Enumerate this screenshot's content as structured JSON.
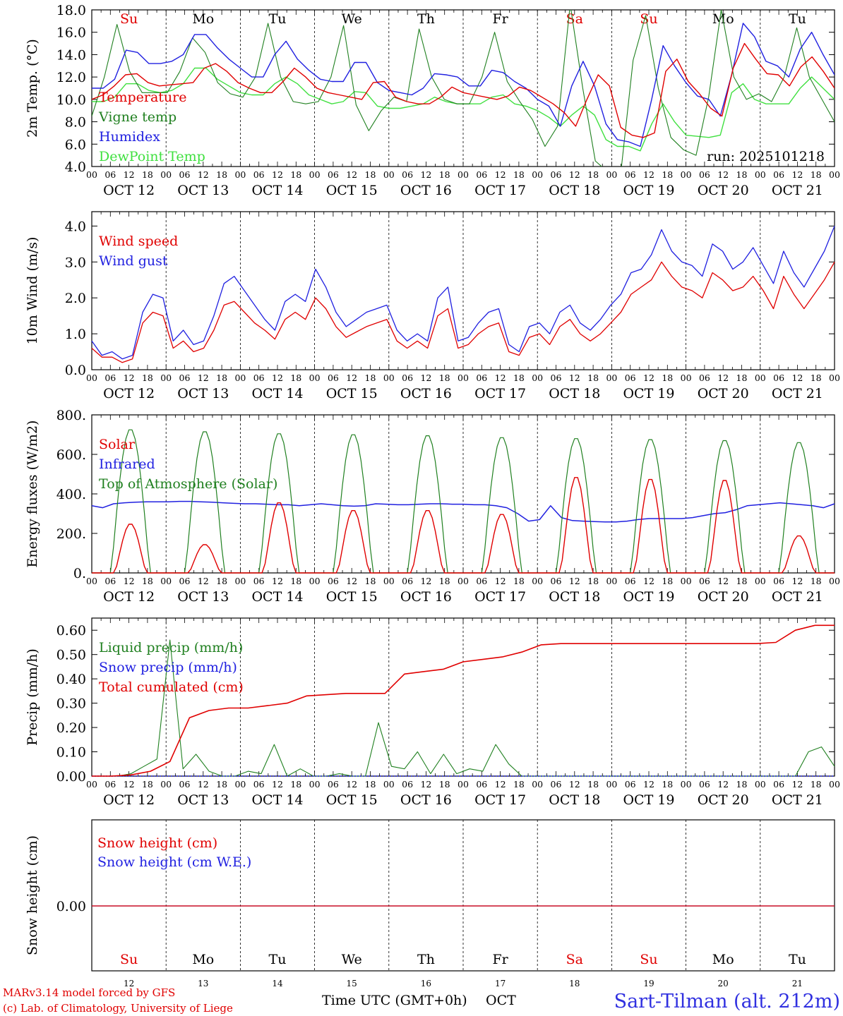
{
  "run_label": "run: 2025101218",
  "days": [
    "OCT 12",
    "OCT 13",
    "OCT 14",
    "OCT 15",
    "OCT 16",
    "OCT 17",
    "OCT 18",
    "OCT 19",
    "OCT 20",
    "OCT 21"
  ],
  "weekdays": [
    "Su",
    "Mo",
    "Tu",
    "We",
    "Th",
    "Fr",
    "Sa",
    "Su",
    "Mo",
    "Tu"
  ],
  "weekday_colors": [
    "#e00000",
    "#000000",
    "#000000",
    "#000000",
    "#000000",
    "#000000",
    "#e00000",
    "#e00000",
    "#000000",
    "#000000"
  ],
  "day_numbers": [
    "12",
    "13",
    "14",
    "15",
    "16",
    "17",
    "18",
    "19",
    "20",
    "21"
  ],
  "hour_ticks": [
    "00",
    "06",
    "12",
    "18"
  ],
  "footer": {
    "model": "MARv3.14 model forced by GFS",
    "lab": "(c) Lab. of Climatology, University of Liege",
    "xlabel": "Time UTC (GMT+0h)",
    "month": "OCT",
    "station": "Sart-Tilman (alt. 212m)"
  },
  "chart_data": [
    {
      "type": "line",
      "ylabel": "2m Temp. (°C)",
      "ylim": [
        4.0,
        18.0
      ],
      "yticks": [
        "4.0",
        "6.0",
        "8.0",
        "10.0",
        "12.0",
        "14.0",
        "16.0",
        "18.0"
      ],
      "x_start": "2025-10-12 00:00",
      "x_step_hours": 3,
      "series": [
        {
          "name": "Temperature",
          "color": "#e00000",
          "values": [
            10,
            10.4,
            11.2,
            12.2,
            12.3,
            11.5,
            11.2,
            11.3,
            11.4,
            11.5,
            12.8,
            13.2,
            12.5,
            11.5,
            11,
            10.6,
            10.6,
            11.6,
            12.8,
            12,
            11,
            10.6,
            10.4,
            10.2,
            10,
            11.5,
            11.6,
            10.2,
            9.8,
            9.6,
            9.6,
            10.2,
            11.1,
            10.6,
            10.4,
            10.2,
            10,
            10.3,
            11.1,
            10.8,
            10.2,
            9.6,
            8.8,
            7.6,
            10,
            12.2,
            11.2,
            7.5,
            6.8,
            6.6,
            7,
            12.5,
            13.6,
            11.6,
            10.5,
            9.2,
            8.5,
            12.8,
            15.0,
            13.6,
            12.3,
            12.2,
            11.2,
            12.9,
            13.8,
            12.5,
            11
          ]
        },
        {
          "name": "Vigne temp",
          "color": "#208020",
          "values": [
            8.5,
            12,
            16.7,
            12.5,
            10.6,
            10.6,
            10.6,
            12.5,
            15.5,
            14.2,
            11.5,
            10.5,
            10.2,
            12,
            16.8,
            12,
            9.8,
            9.6,
            9.8,
            12,
            16.6,
            9.5,
            7.2,
            9,
            10.2,
            9.8,
            16.3,
            12,
            10,
            9.6,
            9.6,
            12,
            16,
            11.6,
            9.8,
            8.2,
            5.8,
            7.6,
            18.5,
            11,
            4.5,
            3.5,
            3.2,
            13.5,
            17.5,
            11,
            6.6,
            5.5,
            5,
            10.2,
            18,
            12,
            10,
            10.5,
            9.8,
            12,
            16.4,
            12,
            10,
            8
          ]
        },
        {
          "name": "Humidex",
          "color": "#2020e0",
          "values": [
            11,
            11,
            11.8,
            14.4,
            14.2,
            13.2,
            13.2,
            13.4,
            14,
            15.8,
            15.8,
            14.6,
            13.6,
            12.8,
            12,
            12,
            14,
            15.2,
            13.6,
            12.6,
            11.8,
            11.6,
            11.6,
            13.3,
            13.3,
            11.5,
            10.8,
            10.6,
            10.4,
            11,
            12.3,
            12.2,
            12,
            11.2,
            11.2,
            12.6,
            12.4,
            11.6,
            11,
            10,
            9.4,
            7.6,
            11.2,
            13.4,
            11.2,
            7.8,
            6.4,
            6.2,
            5.8,
            10,
            14.8,
            13,
            11.5,
            10.3,
            10,
            8.5,
            12.2,
            16.8,
            15.6,
            13.4,
            13,
            12,
            14.5,
            16,
            14,
            12.2
          ]
        },
        {
          "name": "DewPoint Temp",
          "color": "#40e040",
          "values": [
            9.8,
            9.8,
            10.2,
            11.4,
            11.4,
            10.8,
            10.6,
            10.8,
            11.4,
            12.8,
            12.8,
            11.8,
            11.2,
            10.6,
            10.4,
            10.4,
            11.4,
            12,
            11.4,
            10.4,
            10,
            9.6,
            9.8,
            10.7,
            10.6,
            9.4,
            9.2,
            9.2,
            9.4,
            9.6,
            10.2,
            9.8,
            9.6,
            9.6,
            9.6,
            10.2,
            10.4,
            9.6,
            9.4,
            9,
            8.4,
            7.6,
            8.6,
            9.4,
            8.6,
            6.4,
            5.8,
            5.8,
            5.4,
            7.8,
            9.6,
            8,
            6.8,
            6.7,
            6.6,
            6.8,
            10.6,
            11.4,
            10,
            9.6,
            9.6,
            9.6,
            11,
            12,
            11,
            10
          ]
        }
      ]
    },
    {
      "type": "line",
      "ylabel": "10m Wind (m/s)",
      "ylim": [
        0.0,
        4.4
      ],
      "yticks": [
        "0.0",
        "1.0",
        "2.0",
        "3.0",
        "4.0"
      ],
      "x_start": "2025-10-12 00:00",
      "x_step_hours": 3,
      "series": [
        {
          "name": "Wind speed",
          "color": "#e00000",
          "values": [
            0.6,
            0.35,
            0.35,
            0.2,
            0.3,
            1.3,
            1.6,
            1.5,
            0.6,
            0.8,
            0.5,
            0.6,
            1.1,
            1.8,
            1.9,
            1.6,
            1.3,
            1.1,
            0.85,
            1.4,
            1.6,
            1.4,
            2.0,
            1.7,
            1.2,
            0.9,
            1.05,
            1.2,
            1.3,
            1.4,
            0.8,
            0.6,
            0.8,
            0.6,
            1.5,
            1.7,
            0.6,
            0.7,
            1.0,
            1.2,
            1.3,
            0.5,
            0.4,
            0.9,
            1.0,
            0.7,
            1.2,
            1.4,
            1.0,
            0.8,
            1.0,
            1.3,
            1.6,
            2.1,
            2.3,
            2.5,
            3.0,
            2.6,
            2.3,
            2.2,
            2.0,
            2.7,
            2.5,
            2.2,
            2.3,
            2.6,
            2.2,
            1.7,
            2.6,
            2.1,
            1.7,
            2.1,
            2.5,
            3.0
          ]
        },
        {
          "name": "Wind gust",
          "color": "#2020e0",
          "values": [
            0.8,
            0.4,
            0.5,
            0.3,
            0.4,
            1.6,
            2.1,
            2.0,
            0.8,
            1.1,
            0.7,
            0.8,
            1.5,
            2.4,
            2.6,
            2.2,
            1.8,
            1.4,
            1.1,
            1.9,
            2.1,
            1.9,
            2.8,
            2.3,
            1.6,
            1.2,
            1.4,
            1.6,
            1.7,
            1.8,
            1.1,
            0.8,
            1.0,
            0.8,
            2.0,
            2.3,
            0.8,
            0.9,
            1.3,
            1.6,
            1.7,
            0.7,
            0.5,
            1.2,
            1.3,
            1.0,
            1.6,
            1.8,
            1.3,
            1.1,
            1.4,
            1.8,
            2.1,
            2.7,
            2.8,
            3.2,
            3.9,
            3.3,
            3.0,
            2.9,
            2.6,
            3.5,
            3.3,
            2.8,
            3.0,
            3.4,
            2.9,
            2.4,
            3.3,
            2.7,
            2.3,
            2.8,
            3.3,
            4.0
          ]
        }
      ]
    },
    {
      "type": "line",
      "ylabel": "Energy fluxes (W/m2)",
      "ylim": [
        0,
        800
      ],
      "yticks": [
        "0.",
        "200.",
        "400.",
        "600.",
        "800."
      ],
      "x_start": "2025-10-12 00:00",
      "x_step_hours": 3,
      "series": [
        {
          "name": "Solar",
          "color": "#e00000",
          "peaks": [
            250,
            145,
            360,
            320,
            320,
            300,
            490,
            480,
            475,
            190
          ]
        },
        {
          "name": "Infrared",
          "color": "#2020e0",
          "values": [
            340,
            330,
            350,
            355,
            358,
            360,
            360,
            360,
            362,
            362,
            360,
            358,
            355,
            352,
            350,
            350,
            348,
            345,
            345,
            340,
            345,
            350,
            345,
            340,
            338,
            340,
            350,
            348,
            345,
            345,
            348,
            350,
            350,
            348,
            348,
            345,
            345,
            340,
            330,
            300,
            262,
            270,
            340,
            280,
            265,
            262,
            260,
            258,
            258,
            262,
            270,
            275,
            275,
            275,
            275,
            280,
            290,
            300,
            305,
            320,
            340,
            345,
            350,
            355,
            350,
            345,
            340,
            330,
            350
          ]
        },
        {
          "name": "Top of Atmosphere (Solar)",
          "color": "#208020",
          "peaks": [
            730,
            720,
            710,
            705,
            700,
            690,
            685,
            680,
            675,
            665
          ]
        }
      ]
    },
    {
      "type": "line",
      "ylabel": "Precip (mm/h)",
      "ylim": [
        0.0,
        0.65
      ],
      "yticks": [
        "0.00",
        "0.10",
        "0.20",
        "0.30",
        "0.40",
        "0.50",
        "0.60"
      ],
      "x_start": "2025-10-12 00:00",
      "x_step_hours": 3,
      "series": [
        {
          "name": "Liquid precip (mm/h)",
          "color": "#208020",
          "values": [
            0,
            0,
            0,
            0.01,
            0.04,
            0.07,
            0.56,
            0.03,
            0.09,
            0.02,
            0,
            0,
            0.02,
            0.01,
            0.13,
            0,
            0.03,
            0,
            0,
            0.01,
            0,
            0,
            0.22,
            0.04,
            0.03,
            0.1,
            0.01,
            0.09,
            0.01,
            0.03,
            0.02,
            0.13,
            0.05,
            0,
            0,
            0,
            0,
            0,
            0,
            0,
            0,
            0,
            0,
            0,
            0,
            0,
            0,
            0,
            0,
            0,
            0,
            0,
            0,
            0,
            0,
            0.1,
            0.12,
            0.04
          ]
        },
        {
          "name": "Snow precip (mm/h)",
          "color": "#2020e0",
          "values": [
            0,
            0
          ]
        },
        {
          "name": "Total cumulated (cm)",
          "color": "#e00000",
          "values": [
            0,
            0,
            0.005,
            0.02,
            0.06,
            0.24,
            0.27,
            0.28,
            0.28,
            0.29,
            0.3,
            0.33,
            0.335,
            0.34,
            0.34,
            0.34,
            0.42,
            0.43,
            0.44,
            0.47,
            0.48,
            0.49,
            0.51,
            0.54,
            0.545,
            0.545,
            0.545,
            0.545,
            0.545,
            0.545,
            0.545,
            0.545,
            0.545,
            0.545,
            0.545,
            0.55,
            0.6,
            0.62,
            0.62
          ]
        }
      ]
    },
    {
      "type": "line",
      "ylabel": "Snow height (cm)",
      "yticks": [
        "0.00"
      ],
      "series": [
        {
          "name": "Snow height (cm)",
          "color": "#e00000",
          "values": [
            0,
            0
          ]
        },
        {
          "name": "Snow height (cm W.E.)",
          "color": "#2020e0",
          "values": [
            0,
            0
          ]
        }
      ]
    }
  ]
}
